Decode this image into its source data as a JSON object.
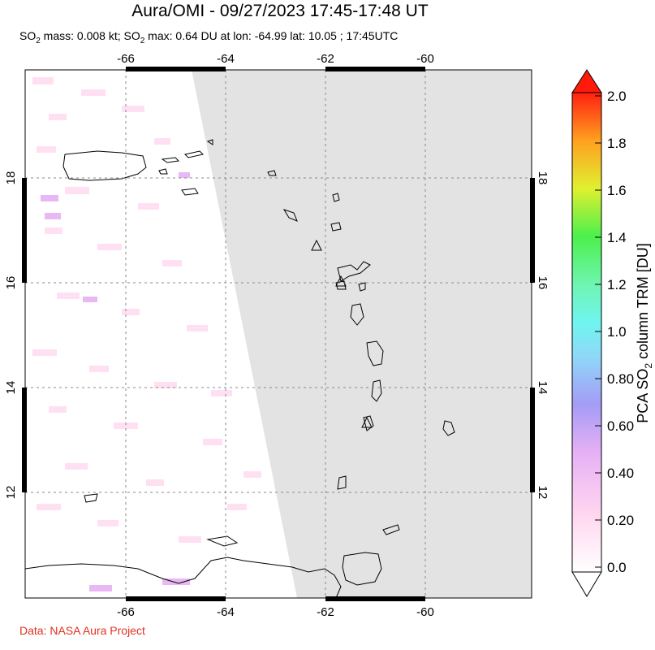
{
  "header": {
    "title": "Aura/OMI - 09/27/2023 17:45-17:48 UT",
    "subtitle_prefix": "SO",
    "subtitle_sub": "2",
    "subtitle_mid": " mass: 0.008 kt; SO",
    "subtitle_sub2": "2",
    "subtitle_rest": " max: 0.64 DU at lon: -64.99 lat: 10.05 ; 17:45UTC"
  },
  "map": {
    "lon_ticks": [
      "-66",
      "-64",
      "-62",
      "-60"
    ],
    "lat_ticks": [
      "18",
      "16",
      "14",
      "12"
    ],
    "no_data_color": "#e3e3e3",
    "coast_color": "#000000"
  },
  "colorbar": {
    "label_prefix": "PCA SO",
    "label_sub": "2",
    "label_rest": " column TRM [DU]",
    "ticks": [
      "2.0",
      "1.8",
      "1.6",
      "1.4",
      "1.2",
      "1.0",
      "0.80",
      "0.60",
      "0.40",
      "0.20",
      "0.0"
    ]
  },
  "footer": {
    "credit": "Data: NASA Aura Project"
  }
}
